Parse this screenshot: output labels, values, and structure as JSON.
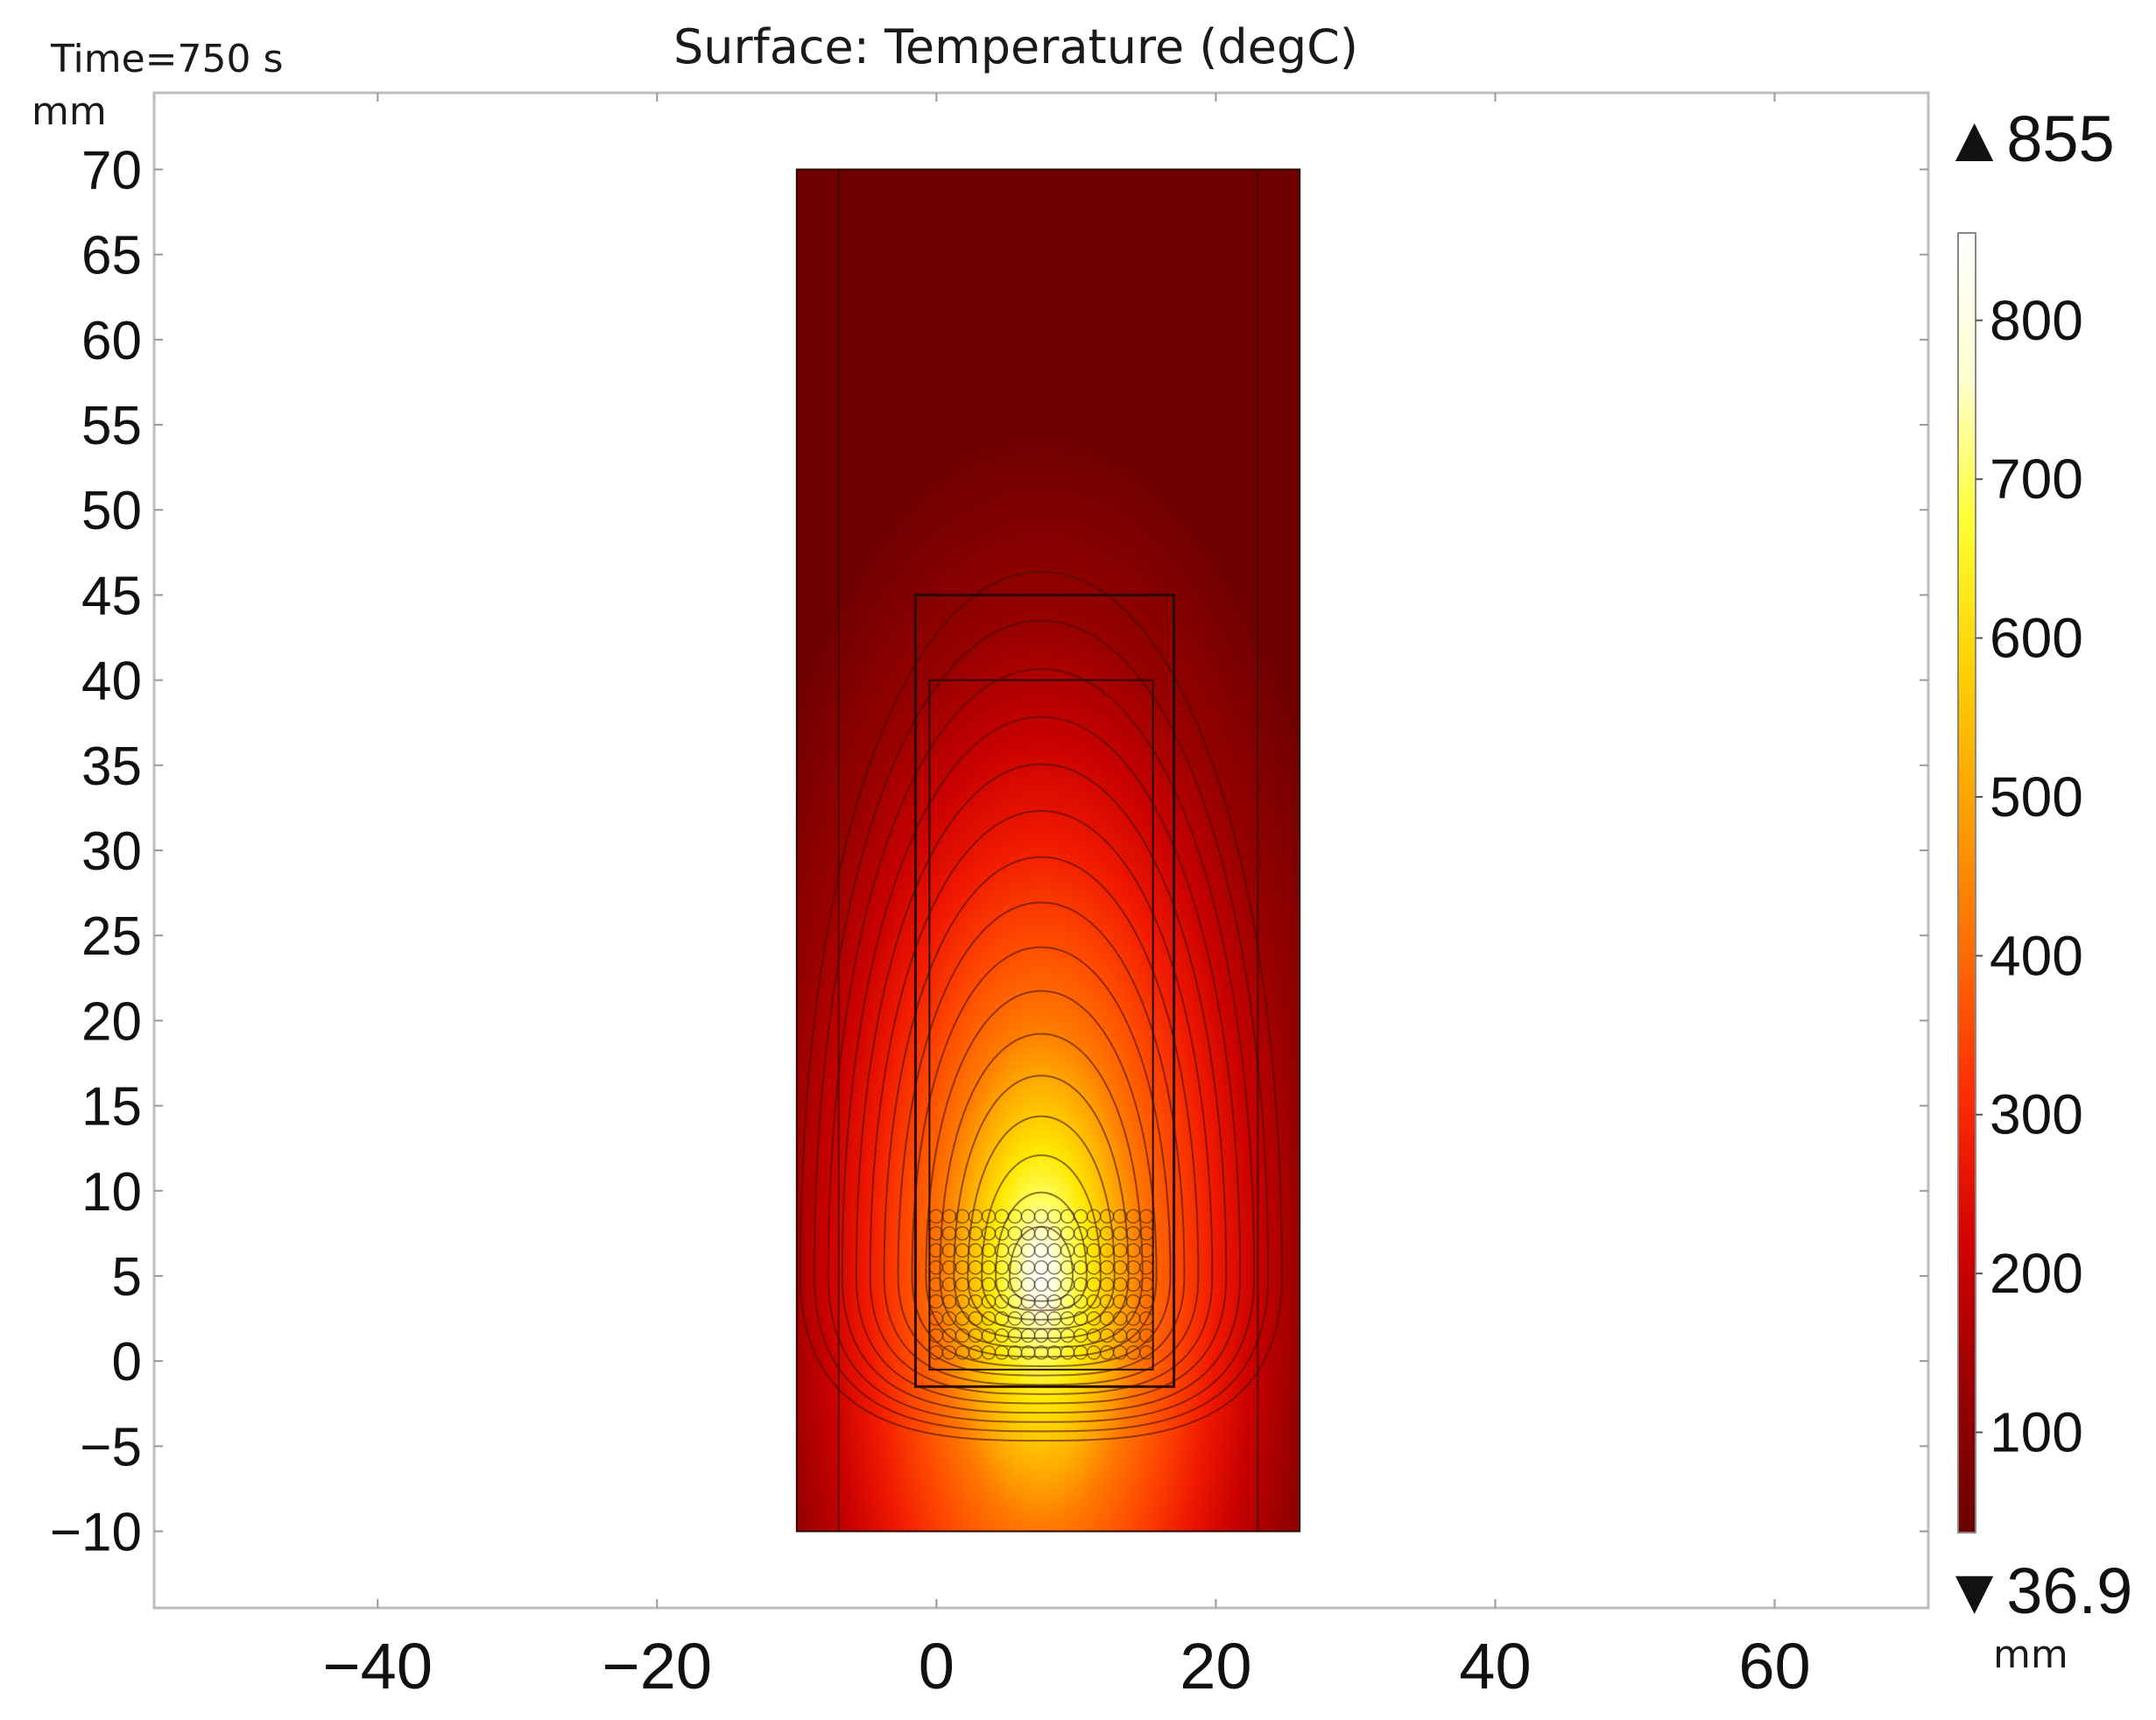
{
  "chart_data": {
    "type": "heatmap",
    "title": "Surface: Temperature (degC)",
    "time_label": "Time=750 s",
    "xlabel": "mm",
    "ylabel": "mm",
    "xlim": [
      -56,
      71
    ],
    "ylim": [
      -14.5,
      74.5
    ],
    "x_ticks": [
      {
        "value": -40,
        "label": "−40"
      },
      {
        "value": -20,
        "label": "−20"
      },
      {
        "value": 0,
        "label": "0"
      },
      {
        "value": 20,
        "label": "20"
      },
      {
        "value": 40,
        "label": "40"
      },
      {
        "value": 60,
        "label": "60"
      }
    ],
    "y_ticks": [
      {
        "value": -10,
        "label": "−10"
      },
      {
        "value": -5,
        "label": "−5"
      },
      {
        "value": 0,
        "label": "0"
      },
      {
        "value": 5,
        "label": "5"
      },
      {
        "value": 10,
        "label": "10"
      },
      {
        "value": 15,
        "label": "15"
      },
      {
        "value": 20,
        "label": "20"
      },
      {
        "value": 25,
        "label": "25"
      },
      {
        "value": 30,
        "label": "30"
      },
      {
        "value": 35,
        "label": "35"
      },
      {
        "value": 40,
        "label": "40"
      },
      {
        "value": 45,
        "label": "45"
      },
      {
        "value": 50,
        "label": "50"
      },
      {
        "value": 55,
        "label": "55"
      },
      {
        "value": 60,
        "label": "60"
      },
      {
        "value": 65,
        "label": "65"
      },
      {
        "value": 70,
        "label": "70"
      }
    ],
    "colorbar": {
      "max_label": "▲855",
      "min_label": "▼36.9",
      "max": 855,
      "min": 36.9,
      "ticks": [
        {
          "value": 800,
          "label": "800"
        },
        {
          "value": 700,
          "label": "700"
        },
        {
          "value": 600,
          "label": "600"
        },
        {
          "value": 500,
          "label": "500"
        },
        {
          "value": 400,
          "label": "400"
        },
        {
          "value": 300,
          "label": "300"
        },
        {
          "value": 200,
          "label": "200"
        },
        {
          "value": 100,
          "label": "100"
        }
      ],
      "colors": [
        "#6a0000",
        "#9a0000",
        "#d40000",
        "#ff2a00",
        "#ff6a00",
        "#ffa000",
        "#ffd200",
        "#ffff30",
        "#ffffd0",
        "#ffffff"
      ]
    },
    "regions": [
      {
        "name": "outer-domain",
        "x": [
          -10,
          26
        ],
        "y": [
          -10,
          70
        ]
      },
      {
        "name": "inner-boundary-left",
        "x": [
          -7,
          -7
        ],
        "y": [
          -10,
          70
        ]
      },
      {
        "name": "inner-boundary-right",
        "x": [
          23,
          23
        ],
        "y": [
          -10,
          70
        ]
      },
      {
        "name": "crucible",
        "x": [
          -1.5,
          17
        ],
        "y": [
          -1.5,
          45
        ]
      },
      {
        "name": "inner-cavity",
        "x": [
          -0.5,
          15.5
        ],
        "y": [
          -0.5,
          40
        ]
      },
      {
        "name": "coil-pack",
        "x": [
          -0.5,
          15.5
        ],
        "y": [
          0,
          9
        ]
      }
    ],
    "hot_spot": {
      "x": 7.5,
      "y": 5,
      "value": 855
    }
  }
}
